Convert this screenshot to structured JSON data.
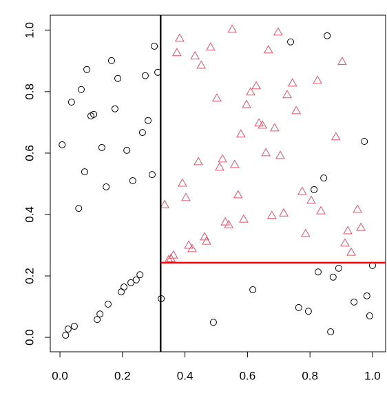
{
  "chart_data": {
    "type": "scatter",
    "xlim": [
      -0.031,
      1.042
    ],
    "ylim": [
      -0.047,
      1.049
    ],
    "xticks": [
      {
        "value": 0,
        "label": "0.0"
      },
      {
        "value": 0.2,
        "label": "0.2"
      },
      {
        "value": 0.4,
        "label": "0.4"
      },
      {
        "value": 0.6,
        "label": "0.6"
      },
      {
        "value": 0.8,
        "label": "0.8"
      },
      {
        "value": 1,
        "label": "1.0"
      }
    ],
    "yticks": [
      {
        "value": 0,
        "label": "0.0"
      },
      {
        "value": 0.2,
        "label": "0.2"
      },
      {
        "value": 0.4,
        "label": "0.4"
      },
      {
        "value": 0.6,
        "label": "0.6"
      },
      {
        "value": 0.8,
        "label": "0.8"
      },
      {
        "value": 1,
        "label": "1.0"
      }
    ],
    "series": [
      {
        "color": "#000000",
        "marker": "circle",
        "x": [
          0.007,
          0.037,
          0.068,
          0.086,
          0.06,
          0.079,
          0.099,
          0.108,
          0.134,
          0.165,
          0.176,
          0.185,
          0.148,
          0.214,
          0.233,
          0.264,
          0.273,
          0.282,
          0.295,
          0.302,
          0.313,
          0.324,
          0.018,
          0.026,
          0.046,
          0.119,
          0.128,
          0.154,
          0.196,
          0.205,
          0.227,
          0.244,
          0.256,
          0.491,
          0.617,
          0.738,
          0.764,
          0.795,
          0.813,
          0.826,
          0.844,
          0.855,
          0.866,
          0.874,
          0.892,
          0.941,
          0.974,
          0.982,
          0.991,
          1.0
        ],
        "y": [
          0.627,
          0.766,
          0.807,
          0.872,
          0.42,
          0.539,
          0.721,
          0.726,
          0.618,
          0.901,
          0.744,
          0.843,
          0.49,
          0.609,
          0.51,
          0.667,
          0.852,
          0.706,
          0.53,
          0.948,
          0.863,
          0.126,
          0.007,
          0.027,
          0.036,
          0.058,
          0.076,
          0.108,
          0.148,
          0.164,
          0.178,
          0.187,
          0.204,
          0.049,
          0.155,
          0.962,
          0.097,
          0.085,
          0.481,
          0.213,
          0.519,
          0.982,
          0.018,
          0.196,
          0.225,
          0.115,
          0.638,
          0.135,
          0.07,
          0.234
        ]
      },
      {
        "color": "#df536b",
        "marker": "triangle",
        "x": [
          0.335,
          0.348,
          0.355,
          0.363,
          0.374,
          0.383,
          0.392,
          0.403,
          0.412,
          0.423,
          0.432,
          0.452,
          0.443,
          0.463,
          0.469,
          0.482,
          0.502,
          0.511,
          0.52,
          0.529,
          0.54,
          0.551,
          0.559,
          0.57,
          0.579,
          0.588,
          0.597,
          0.61,
          0.628,
          0.637,
          0.648,
          0.659,
          0.667,
          0.678,
          0.687,
          0.698,
          0.705,
          0.716,
          0.727,
          0.744,
          0.756,
          0.775,
          0.786,
          0.804,
          0.824,
          0.835,
          0.883,
          0.903,
          0.912,
          0.921,
          0.932,
          0.952,
          0.963
        ],
        "y": [
          0.431,
          0.252,
          0.256,
          0.267,
          0.926,
          0.973,
          0.501,
          0.454,
          0.299,
          0.288,
          0.915,
          0.885,
          0.571,
          0.326,
          0.312,
          0.944,
          0.778,
          0.553,
          0.58,
          0.375,
          0.366,
          1.002,
          0.562,
          0.463,
          0.661,
          0.384,
          0.757,
          0.798,
          0.818,
          0.697,
          0.69,
          0.6,
          0.935,
          0.396,
          0.681,
          0.993,
          0.591,
          0.404,
          0.789,
          0.827,
          0.737,
          0.474,
          0.337,
          0.445,
          0.836,
          0.411,
          0.652,
          0.897,
          0.306,
          0.346,
          0.276,
          0.416,
          0.357
        ]
      }
    ],
    "vline": {
      "x": 0.322,
      "color": "#000000"
    },
    "hline": {
      "y": 0.243,
      "color": "#ff0000"
    }
  }
}
